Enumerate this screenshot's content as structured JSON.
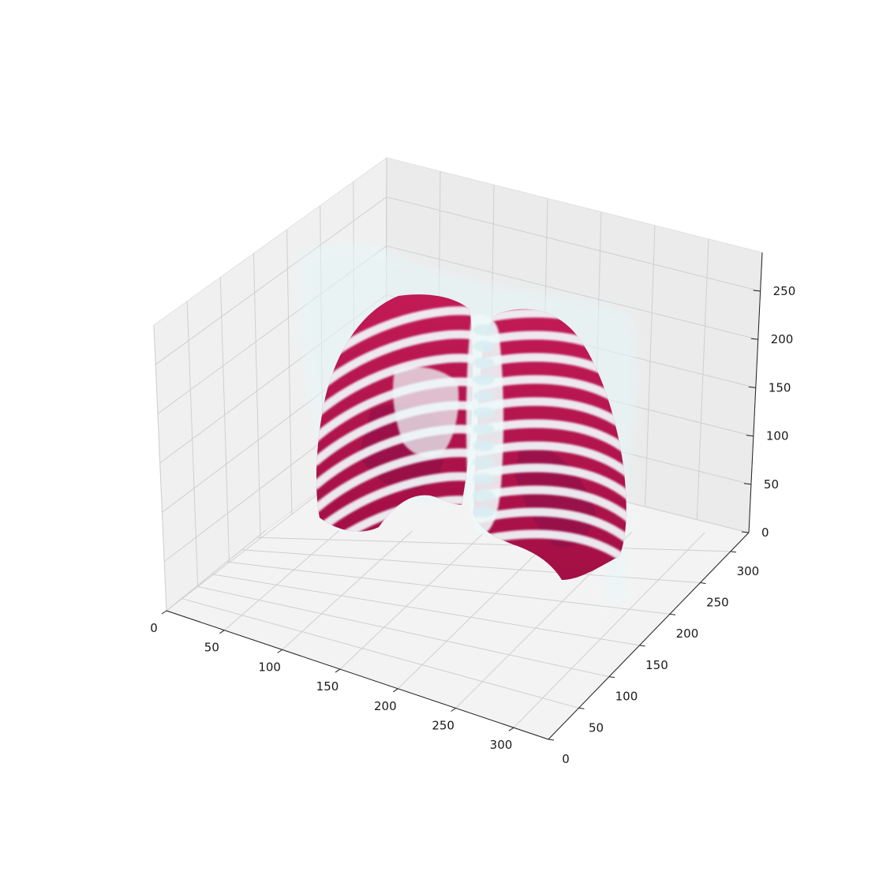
{
  "chart_data": {
    "type": "3d-volume-render",
    "title": "",
    "xlabel": "",
    "ylabel": "",
    "zlabel": "",
    "xlim": [
      0,
      330
    ],
    "ylim": [
      0,
      330
    ],
    "zlim": [
      0,
      290
    ],
    "x_ticks": [
      0,
      50,
      100,
      150,
      200,
      250,
      300
    ],
    "x_tick_labels": [
      "0",
      "50",
      "100",
      "150",
      "200",
      "250",
      "300"
    ],
    "y_ticks": [
      0,
      50,
      100,
      150,
      200,
      250,
      300
    ],
    "y_tick_labels": [
      "0",
      "50",
      "100",
      "150",
      "200",
      "250",
      "300"
    ],
    "z_ticks": [
      0,
      50,
      100,
      150,
      200,
      250
    ],
    "z_tick_labels": [
      "0",
      "50",
      "100",
      "150",
      "200",
      "250"
    ],
    "grid": true,
    "legend": "none",
    "colors": {
      "lungs": "#b3124a",
      "lungs_dark": "#7c0d45",
      "bone": "#eef8fa",
      "bone_faint": "#e6f7f9"
    },
    "series": [
      {
        "surface": "lungs",
        "color": "#b3124a"
      },
      {
        "surface": "bone",
        "color": "#eef8fa"
      }
    ]
  }
}
